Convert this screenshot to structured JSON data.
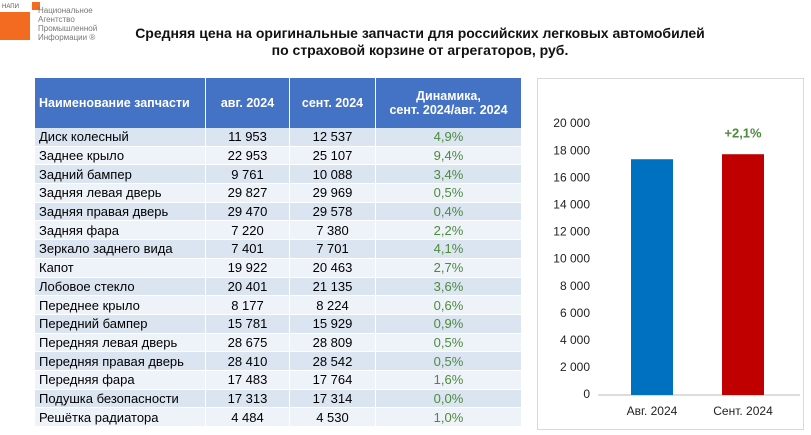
{
  "logo": {
    "abbr": "НАПИ",
    "text": "Национальное\nАгентство\nПромышленной\nИнформации ®"
  },
  "title": "Средняя цена на оригинальные запчасти для российских легковых автомобилей\nпо страховой корзине от агрегаторов, руб.",
  "table": {
    "header": [
      "Наименование запчасти",
      "авг. 2024",
      "сент. 2024",
      "Динамика,\nсент. 2024/авг. 2024"
    ],
    "rows": [
      [
        "Диск колесный",
        "11 953",
        "12 537",
        "4,9%"
      ],
      [
        "Заднее крыло",
        "22 953",
        "25 107",
        "9,4%"
      ],
      [
        "Задний бампер",
        "9 761",
        "10 088",
        "3,4%"
      ],
      [
        "Задняя левая дверь",
        "29 827",
        "29 969",
        "0,5%"
      ],
      [
        "Задняя правая дверь",
        "29 470",
        "29 578",
        "0,4%"
      ],
      [
        "Задняя фара",
        "7 220",
        "7 380",
        "2,2%"
      ],
      [
        "Зеркало заднего вида",
        "7 401",
        "7 701",
        "4,1%"
      ],
      [
        "Капот",
        "19 922",
        "20 463",
        "2,7%"
      ],
      [
        "Лобовое стекло",
        "20 401",
        "21 135",
        "3,6%"
      ],
      [
        "Переднее крыло",
        "8 177",
        "8 224",
        "0,6%"
      ],
      [
        "Передний бампер",
        "15 781",
        "15 929",
        "0,9%"
      ],
      [
        "Передняя левая дверь",
        "28 675",
        "28 809",
        "0,5%"
      ],
      [
        "Передняя правая дверь",
        "28 410",
        "28 542",
        "0,5%"
      ],
      [
        "Передняя фара",
        "17 483",
        "17 764",
        "1,6%"
      ],
      [
        "Подушка безопасности",
        "17 313",
        "17 314",
        "0,0%"
      ],
      [
        "Решётка радиатора",
        "4 484",
        "4 530",
        "1,0%"
      ]
    ]
  },
  "chart_data": {
    "type": "bar",
    "categories": [
      "Авг. 2024",
      "Сент. 2024"
    ],
    "values": [
      17400,
      17770
    ],
    "colors": [
      "#0070c0",
      "#c00000"
    ],
    "annotation": "+2,1%",
    "ylim": [
      0,
      20000
    ],
    "yticks": [
      0,
      {
        "value": 2000,
        "label": "2 000"
      },
      {
        "value": 4000,
        "label": "4 000"
      },
      {
        "value": 6000,
        "label": "6 000"
      },
      {
        "value": 8000,
        "label": "8 000"
      },
      {
        "value": 10000,
        "label": "10 000"
      },
      {
        "value": 12000,
        "label": "12 000"
      },
      {
        "value": 14000,
        "label": "14 000"
      },
      {
        "value": 16000,
        "label": "16 000"
      },
      {
        "value": 18000,
        "label": "18 000"
      },
      {
        "value": 20000,
        "label": "20 000"
      }
    ]
  }
}
